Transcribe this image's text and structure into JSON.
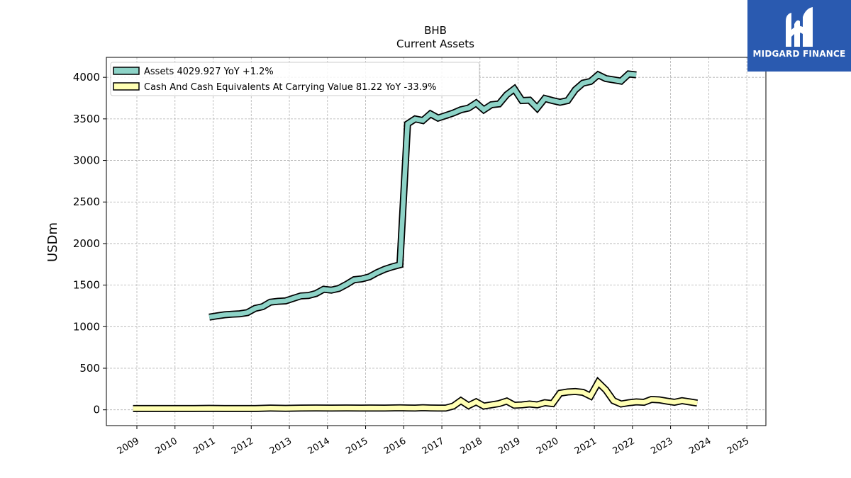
{
  "chart_data": {
    "type": "line",
    "title": "BHB",
    "subtitle": "Current  Assets",
    "ylabel": "USDm",
    "xlabel": "",
    "ylim": [
      -190,
      4240
    ],
    "xlim": [
      2008.2,
      2025.5
    ],
    "yticks": [
      0,
      500,
      1000,
      1500,
      2000,
      2500,
      3000,
      3500,
      4000
    ],
    "xticks": [
      "2009",
      "2010",
      "2011",
      "2012",
      "2013",
      "2014",
      "2015",
      "2016",
      "2017",
      "2018",
      "2019",
      "2020",
      "2021",
      "2022",
      "2023",
      "2024",
      "2025"
    ],
    "grid": true,
    "legend_position": "top-left",
    "series": [
      {
        "name": "Assets  4029.927 YoY +1.2%",
        "color": "#8dd3c7",
        "points": [
          [
            2010.9,
            1115
          ],
          [
            2011.1,
            1130
          ],
          [
            2011.3,
            1143
          ],
          [
            2011.5,
            1150
          ],
          [
            2011.7,
            1155
          ],
          [
            2011.9,
            1170
          ],
          [
            2012.1,
            1220
          ],
          [
            2012.3,
            1240
          ],
          [
            2012.5,
            1295
          ],
          [
            2012.7,
            1305
          ],
          [
            2012.9,
            1310
          ],
          [
            2013.1,
            1340
          ],
          [
            2013.3,
            1370
          ],
          [
            2013.5,
            1375
          ],
          [
            2013.7,
            1400
          ],
          [
            2013.9,
            1450
          ],
          [
            2014.1,
            1440
          ],
          [
            2014.3,
            1460
          ],
          [
            2014.5,
            1510
          ],
          [
            2014.7,
            1565
          ],
          [
            2014.9,
            1575
          ],
          [
            2015.1,
            1600
          ],
          [
            2015.3,
            1650
          ],
          [
            2015.5,
            1690
          ],
          [
            2015.7,
            1720
          ],
          [
            2015.9,
            1745
          ],
          [
            2016.1,
            3440
          ],
          [
            2016.3,
            3500
          ],
          [
            2016.5,
            3480
          ],
          [
            2016.7,
            3560
          ],
          [
            2016.9,
            3510
          ],
          [
            2017.1,
            3540
          ],
          [
            2017.3,
            3570
          ],
          [
            2017.5,
            3610
          ],
          [
            2017.7,
            3630
          ],
          [
            2017.9,
            3690
          ],
          [
            2018.1,
            3610
          ],
          [
            2018.3,
            3670
          ],
          [
            2018.5,
            3680
          ],
          [
            2018.7,
            3790
          ],
          [
            2018.9,
            3860
          ],
          [
            2019.1,
            3720
          ],
          [
            2019.3,
            3725
          ],
          [
            2019.5,
            3630
          ],
          [
            2019.7,
            3745
          ],
          [
            2019.9,
            3720
          ],
          [
            2020.1,
            3700
          ],
          [
            2020.3,
            3720
          ],
          [
            2020.5,
            3850
          ],
          [
            2020.7,
            3930
          ],
          [
            2020.9,
            3950
          ],
          [
            2021.1,
            4030
          ],
          [
            2021.3,
            3985
          ],
          [
            2021.5,
            3970
          ],
          [
            2021.7,
            3955
          ],
          [
            2021.9,
            4040
          ],
          [
            2022.1,
            4030
          ]
        ]
      },
      {
        "name": "Cash And Cash Equivalents At Carrying Value  81.22 YoY -33.9%",
        "color": "#ffffb3",
        "points": [
          [
            2008.9,
            15
          ],
          [
            2009.3,
            15
          ],
          [
            2009.7,
            15
          ],
          [
            2010.1,
            15
          ],
          [
            2010.5,
            15
          ],
          [
            2010.9,
            18
          ],
          [
            2011.3,
            15
          ],
          [
            2011.7,
            15
          ],
          [
            2012.1,
            15
          ],
          [
            2012.5,
            20
          ],
          [
            2012.9,
            18
          ],
          [
            2013.3,
            20
          ],
          [
            2013.7,
            22
          ],
          [
            2014.1,
            20
          ],
          [
            2014.5,
            22
          ],
          [
            2014.9,
            20
          ],
          [
            2015.1,
            22
          ],
          [
            2015.5,
            20
          ],
          [
            2015.9,
            24
          ],
          [
            2016.1,
            22
          ],
          [
            2016.3,
            20
          ],
          [
            2016.5,
            25
          ],
          [
            2016.7,
            22
          ],
          [
            2016.9,
            20
          ],
          [
            2017.1,
            20
          ],
          [
            2017.3,
            45
          ],
          [
            2017.5,
            110
          ],
          [
            2017.7,
            50
          ],
          [
            2017.9,
            95
          ],
          [
            2018.1,
            45
          ],
          [
            2018.3,
            60
          ],
          [
            2018.5,
            75
          ],
          [
            2018.7,
            105
          ],
          [
            2018.9,
            55
          ],
          [
            2019.1,
            60
          ],
          [
            2019.3,
            70
          ],
          [
            2019.5,
            60
          ],
          [
            2019.7,
            85
          ],
          [
            2019.9,
            75
          ],
          [
            2020.1,
            200
          ],
          [
            2020.3,
            215
          ],
          [
            2020.5,
            220
          ],
          [
            2020.7,
            210
          ],
          [
            2020.9,
            165
          ],
          [
            2021.1,
            330
          ],
          [
            2021.3,
            240
          ],
          [
            2021.5,
            110
          ],
          [
            2021.7,
            70
          ],
          [
            2021.9,
            85
          ],
          [
            2022.1,
            95
          ],
          [
            2022.3,
            90
          ],
          [
            2022.5,
            125
          ],
          [
            2022.7,
            120
          ],
          [
            2022.9,
            105
          ],
          [
            2023.1,
            90
          ],
          [
            2023.3,
            110
          ],
          [
            2023.5,
            95
          ],
          [
            2023.7,
            81
          ]
        ]
      }
    ]
  },
  "logo": {
    "text": "MIDGARD FINANCE",
    "bg": "#2a5ab0",
    "icon": "midgard-logo-icon"
  }
}
